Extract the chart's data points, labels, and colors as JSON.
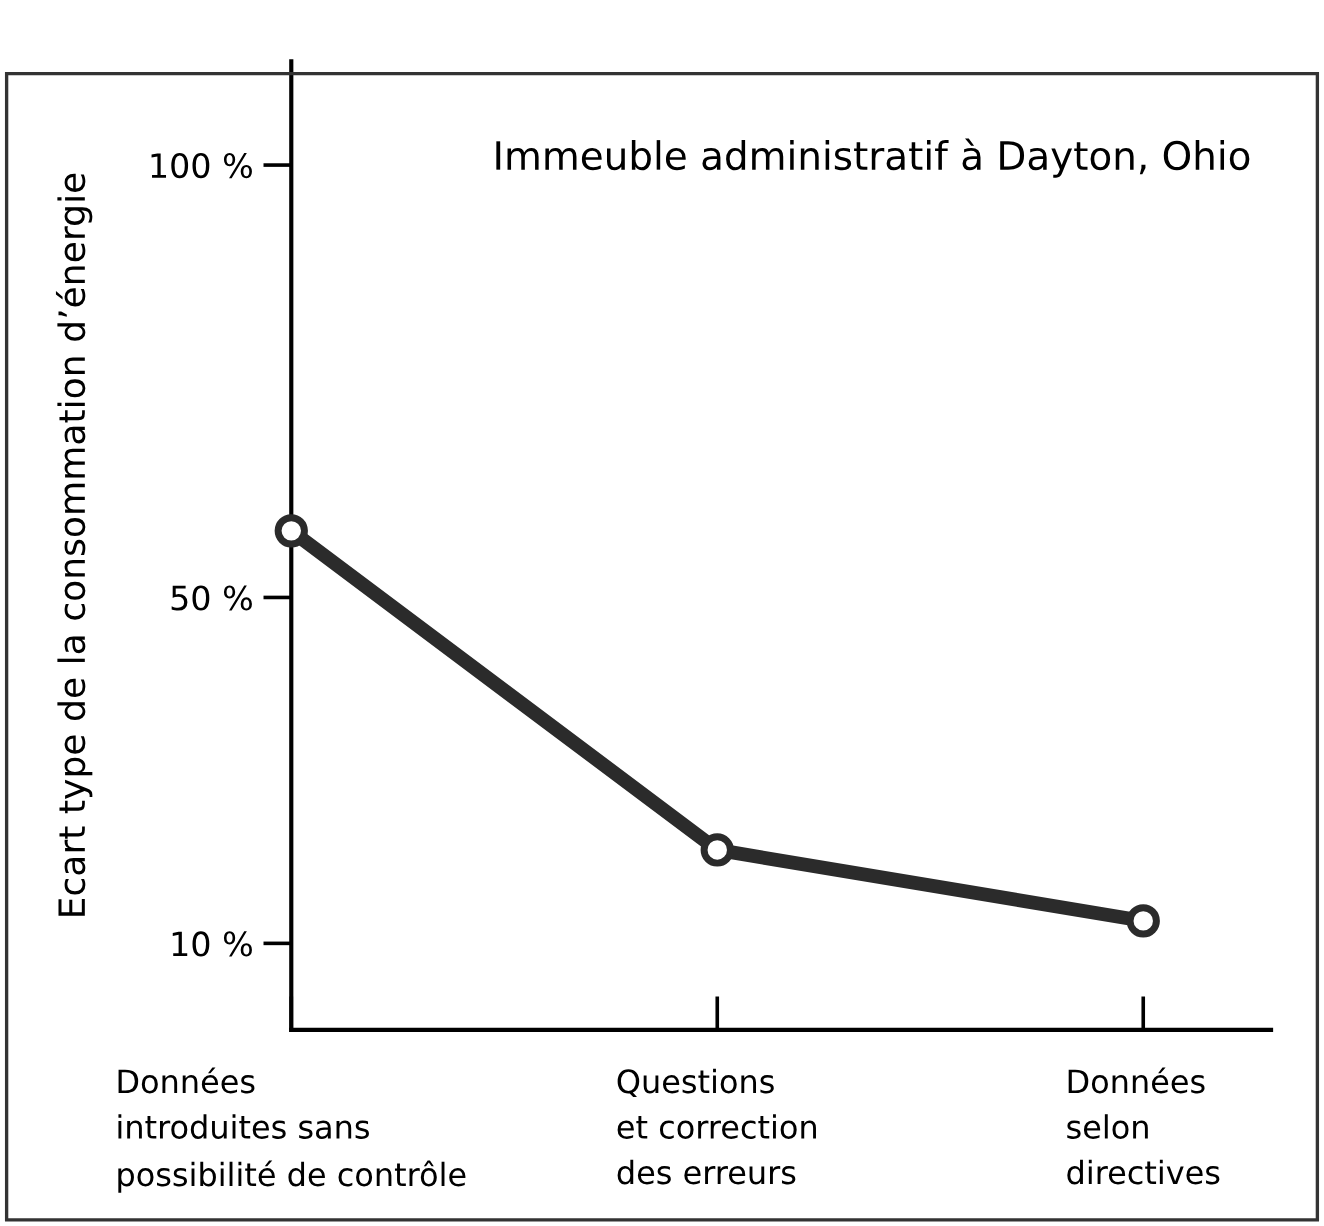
{
  "chart_data": {
    "type": "line",
    "title": "Immeuble administratif à Dayton, Ohio",
    "ylabel": "Ecart type de la consommation d’énergie",
    "categories": [
      "Données\nintroduites sans\npossibilité de contrôle",
      "Questions\net correction\ndes erreurs",
      "Données\nselon\ndirectives"
    ],
    "series": [
      {
        "color": "#2b2b2b",
        "values": [
          57.7,
          20.8,
          12.6
        ]
      }
    ],
    "ylim": [
      0,
      112
    ],
    "yticks": [
      {
        "value": 10,
        "label": "10 %"
      },
      {
        "value": 50,
        "label": "50 %"
      },
      {
        "value": 100,
        "label": "100 %"
      }
    ],
    "marker": "circle",
    "line_style": "solid",
    "grid": false
  }
}
